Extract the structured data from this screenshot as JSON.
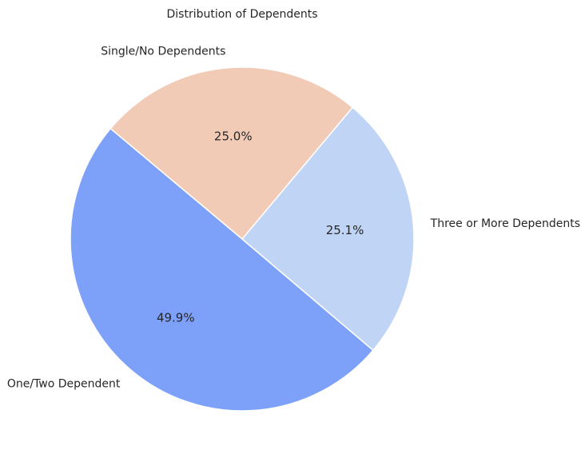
{
  "chart_data": {
    "type": "pie",
    "title": "Distribution of Dependents",
    "slices": [
      {
        "label": "One/Two Dependent",
        "value": 49.9,
        "pct_label": "49.9%",
        "color": "#7da0f9"
      },
      {
        "label": "Three or More Dependents",
        "value": 25.1,
        "pct_label": "25.1%",
        "color": "#c0d4f5"
      },
      {
        "label": "Single/No Dependents",
        "value": 25.0,
        "pct_label": "25.0%",
        "color": "#f2cbb7"
      }
    ],
    "start_angle_deg": 140,
    "direction": "counterclockwise",
    "legend": "none"
  }
}
